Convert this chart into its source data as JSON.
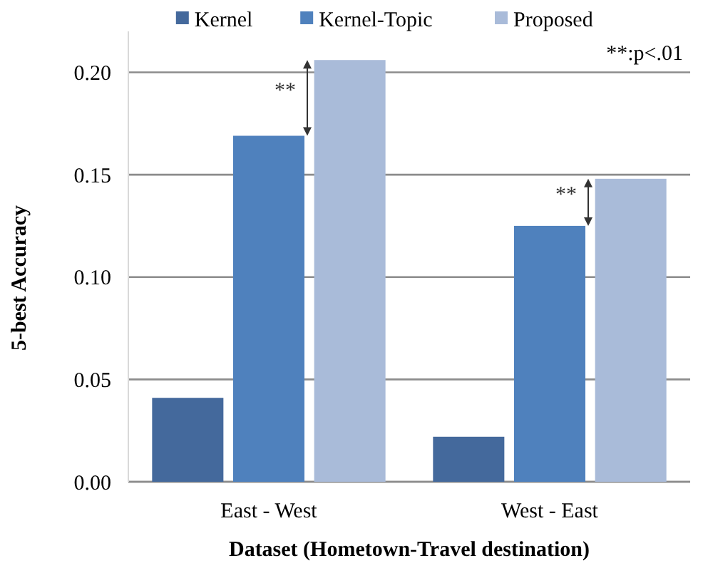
{
  "chart_data": {
    "type": "bar",
    "xlabel": "Dataset (Hometown-Travel destination)",
    "ylabel": "5-best Accuracy",
    "categories": [
      "East - West",
      "West - East"
    ],
    "series": [
      {
        "name": "Kernel",
        "color": "#44699c",
        "values": [
          0.041,
          0.022
        ]
      },
      {
        "name": "Kernel-Topic",
        "color": "#4f81bd",
        "values": [
          0.169,
          0.125
        ]
      },
      {
        "name": "Proposed",
        "color": "#a9bbd9",
        "values": [
          0.206,
          0.148
        ]
      }
    ],
    "ylim": [
      0,
      0.22
    ],
    "yticks": [
      {
        "value": 0,
        "label": "0.00"
      },
      {
        "value": 0.05,
        "label": "0.05"
      },
      {
        "value": 0.1,
        "label": "0.10"
      },
      {
        "value": 0.15,
        "label": "0.15"
      },
      {
        "value": 0.2,
        "label": "0.20"
      }
    ],
    "grid": "y",
    "legend": "top",
    "annotations": [
      "**",
      "**",
      "**:p<.01"
    ]
  }
}
